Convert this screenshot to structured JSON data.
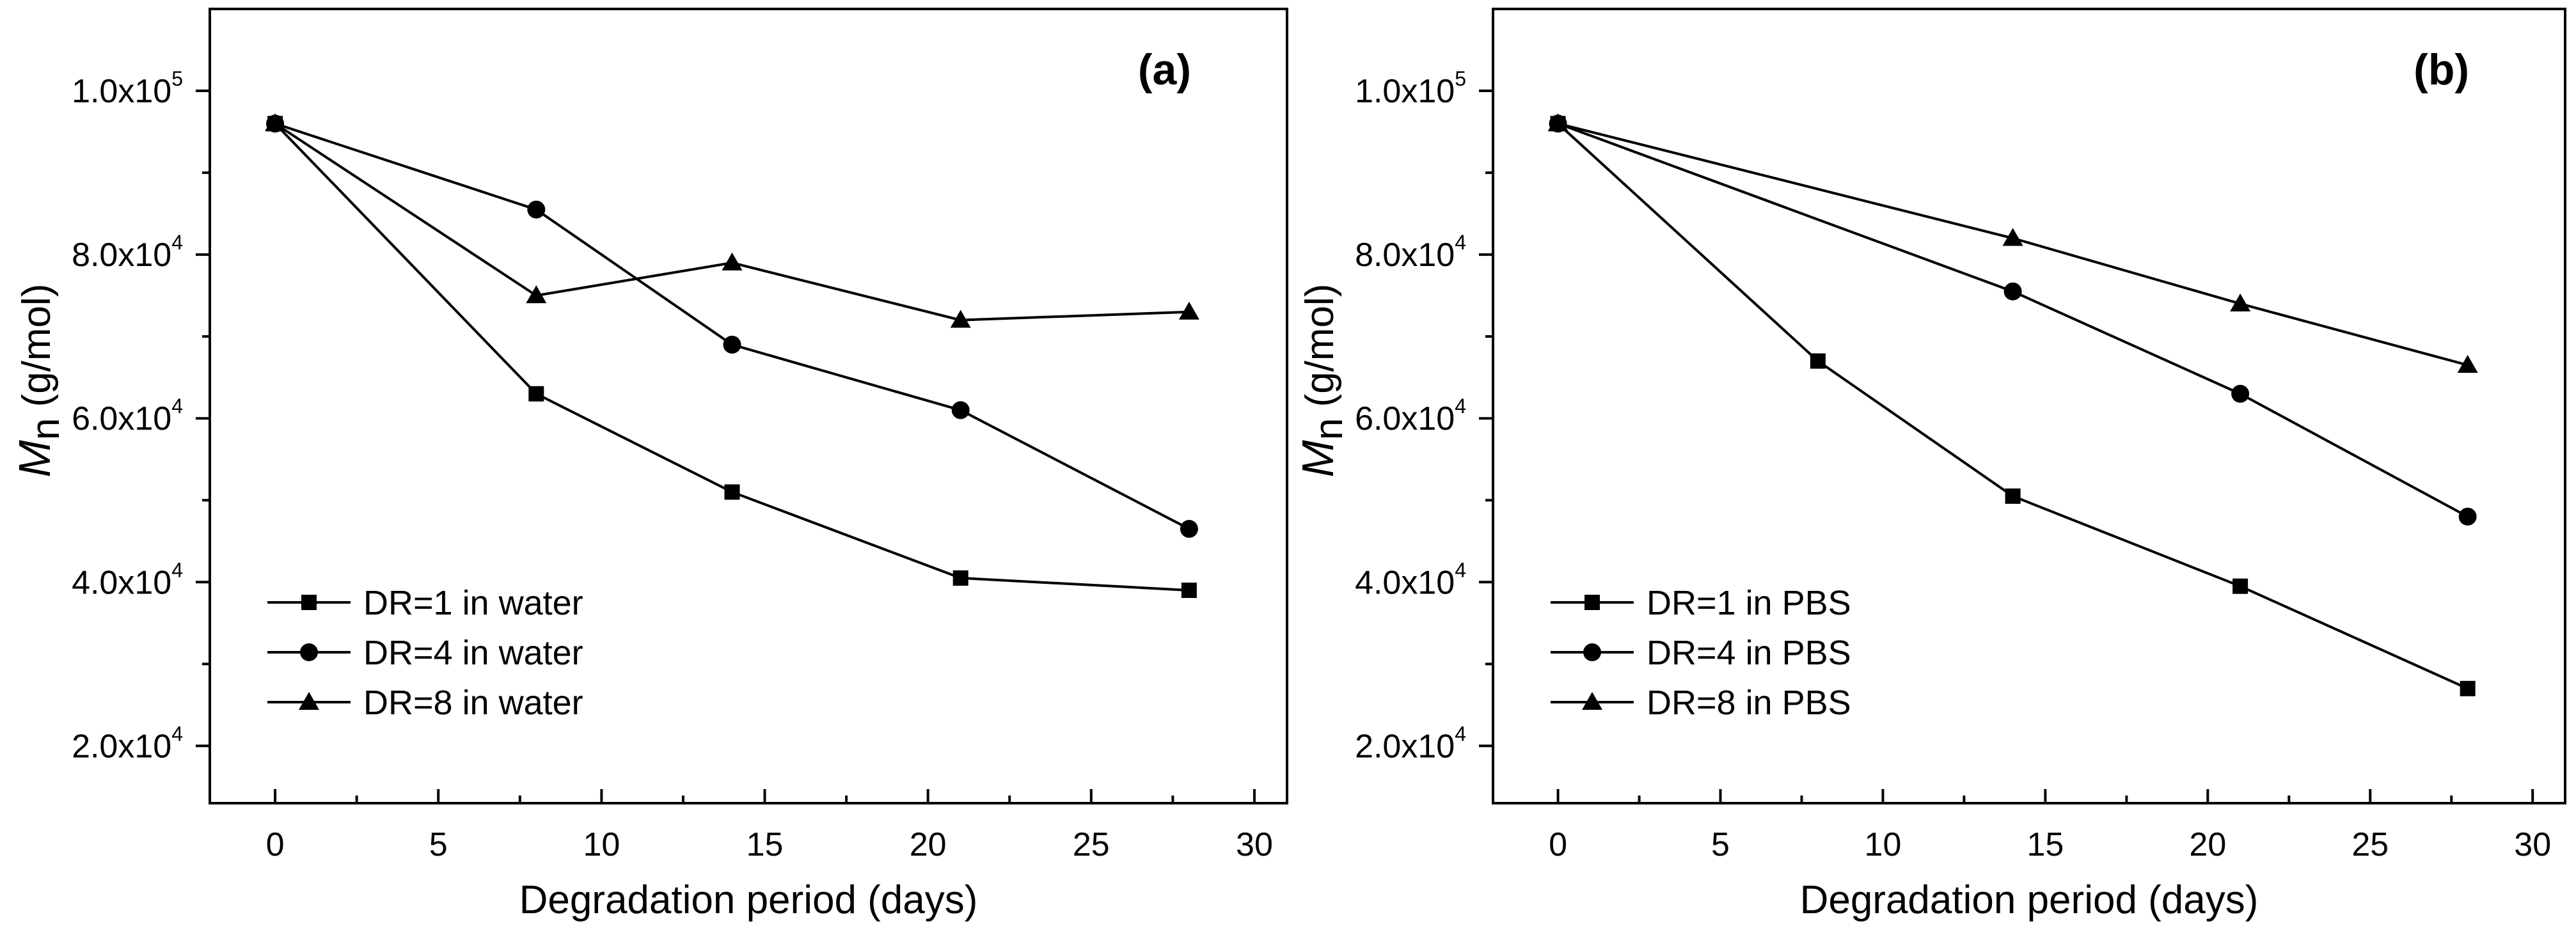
{
  "chart_data": [
    {
      "type": "line",
      "panel_label": "(a)",
      "xlabel": "Degradation period (days)",
      "ylabel_symbol": "M",
      "ylabel_subscript": "n",
      "ylabel_unit": "(g/mol)",
      "xlim": [
        -2,
        31
      ],
      "ylim": [
        13000,
        110000
      ],
      "xticks": [
        0,
        5,
        10,
        15,
        20,
        25,
        30
      ],
      "xtick_labels": [
        "0",
        "5",
        "10",
        "15",
        "20",
        "25",
        "30"
      ],
      "yticks": [
        20000,
        40000,
        60000,
        80000,
        100000
      ],
      "ytick_labels": [
        {
          "mantissa": "2.0x10",
          "exponent": "4"
        },
        {
          "mantissa": "4.0x10",
          "exponent": "4"
        },
        {
          "mantissa": "6.0x10",
          "exponent": "4"
        },
        {
          "mantissa": "8.0x10",
          "exponent": "4"
        },
        {
          "mantissa": "1.0x10",
          "exponent": "5"
        }
      ],
      "legend_position": "bottom-left",
      "series": [
        {
          "name": "DR=1 in water",
          "marker": "square",
          "x": [
            0,
            8,
            14,
            21,
            28
          ],
          "values": [
            96000,
            63000,
            51000,
            40500,
            39000
          ]
        },
        {
          "name": "DR=4 in water",
          "marker": "circle",
          "x": [
            0,
            8,
            14,
            21,
            28
          ],
          "values": [
            96000,
            85500,
            69000,
            61000,
            46500
          ]
        },
        {
          "name": "DR=8 in water",
          "marker": "triangle",
          "x": [
            0,
            8,
            14,
            21,
            28
          ],
          "values": [
            96000,
            75000,
            79000,
            72000,
            73000
          ]
        }
      ]
    },
    {
      "type": "line",
      "panel_label": "(b)",
      "xlabel": "Degradation period (days)",
      "ylabel_symbol": "M",
      "ylabel_subscript": "n",
      "ylabel_unit": "(g/mol)",
      "xlim": [
        -2,
        31
      ],
      "ylim": [
        13000,
        110000
      ],
      "xticks": [
        0,
        5,
        10,
        15,
        20,
        25,
        30
      ],
      "xtick_labels": [
        "0",
        "5",
        "10",
        "15",
        "20",
        "25",
        "30"
      ],
      "yticks": [
        20000,
        40000,
        60000,
        80000,
        100000
      ],
      "ytick_labels": [
        {
          "mantissa": "2.0x10",
          "exponent": "4"
        },
        {
          "mantissa": "4.0x10",
          "exponent": "4"
        },
        {
          "mantissa": "6.0x10",
          "exponent": "4"
        },
        {
          "mantissa": "8.0x10",
          "exponent": "4"
        },
        {
          "mantissa": "1.0x10",
          "exponent": "5"
        }
      ],
      "legend_position": "bottom-left",
      "series": [
        {
          "name": "DR=1 in PBS",
          "marker": "square",
          "x": [
            0,
            8,
            14,
            21,
            28
          ],
          "values": [
            96000,
            67000,
            50500,
            39500,
            27000
          ]
        },
        {
          "name": "DR=4 in PBS",
          "marker": "circle",
          "x": [
            0,
            14,
            21,
            28
          ],
          "values": [
            96000,
            75500,
            63000,
            48000
          ]
        },
        {
          "name": "DR=8 in PBS",
          "marker": "triangle",
          "x": [
            0,
            14,
            21,
            28
          ],
          "values": [
            96000,
            82000,
            74000,
            66500
          ]
        }
      ]
    }
  ]
}
